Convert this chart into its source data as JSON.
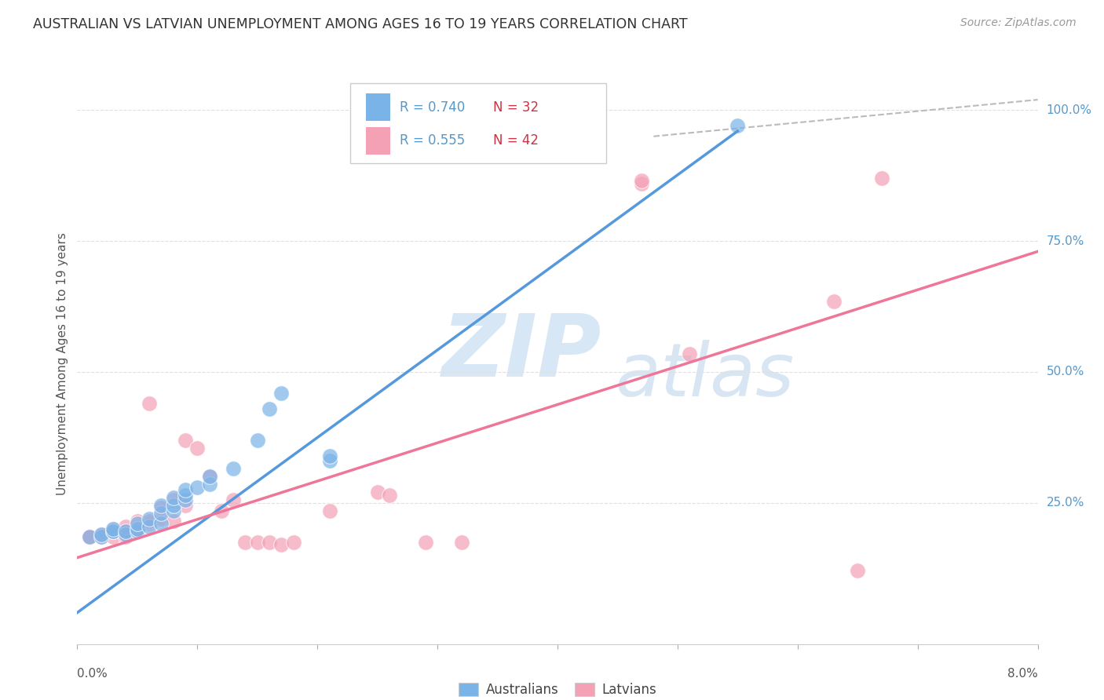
{
  "title": "AUSTRALIAN VS LATVIAN UNEMPLOYMENT AMONG AGES 16 TO 19 YEARS CORRELATION CHART",
  "source": "Source: ZipAtlas.com",
  "ylabel": "Unemployment Among Ages 16 to 19 years",
  "xlim": [
    0.0,
    0.08
  ],
  "ylim": [
    -0.02,
    1.05
  ],
  "legend_blue_r": "R = 0.740",
  "legend_blue_n": "N = 32",
  "legend_pink_r": "R = 0.555",
  "legend_pink_n": "N = 42",
  "legend_label_blue": "Australians",
  "legend_label_pink": "Latvians",
  "watermark_zip": "ZIP",
  "watermark_atlas": "atlas",
  "blue_color": "#7ab3e8",
  "pink_color": "#f4a0b5",
  "blue_line_color": "#5599dd",
  "pink_line_color": "#ee7799",
  "title_color": "#333333",
  "source_color": "#999999",
  "legend_r_color": "#5599cc",
  "legend_n_color": "#cc3344",
  "yaxis_color": "#5599cc",
  "grid_color": "#e0e0e0",
  "blue_scatter": [
    [
      0.001,
      0.185
    ],
    [
      0.002,
      0.185
    ],
    [
      0.002,
      0.19
    ],
    [
      0.003,
      0.195
    ],
    [
      0.003,
      0.195
    ],
    [
      0.003,
      0.2
    ],
    [
      0.004,
      0.19
    ],
    [
      0.004,
      0.195
    ],
    [
      0.005,
      0.195
    ],
    [
      0.005,
      0.2
    ],
    [
      0.005,
      0.21
    ],
    [
      0.006,
      0.205
    ],
    [
      0.006,
      0.22
    ],
    [
      0.007,
      0.21
    ],
    [
      0.007,
      0.23
    ],
    [
      0.007,
      0.245
    ],
    [
      0.008,
      0.235
    ],
    [
      0.008,
      0.245
    ],
    [
      0.008,
      0.26
    ],
    [
      0.009,
      0.255
    ],
    [
      0.009,
      0.265
    ],
    [
      0.009,
      0.275
    ],
    [
      0.01,
      0.28
    ],
    [
      0.011,
      0.285
    ],
    [
      0.011,
      0.3
    ],
    [
      0.013,
      0.315
    ],
    [
      0.015,
      0.37
    ],
    [
      0.016,
      0.43
    ],
    [
      0.017,
      0.46
    ],
    [
      0.021,
      0.33
    ],
    [
      0.021,
      0.34
    ],
    [
      0.055,
      0.97
    ]
  ],
  "pink_scatter": [
    [
      0.001,
      0.185
    ],
    [
      0.001,
      0.185
    ],
    [
      0.002,
      0.185
    ],
    [
      0.002,
      0.19
    ],
    [
      0.003,
      0.185
    ],
    [
      0.003,
      0.195
    ],
    [
      0.003,
      0.2
    ],
    [
      0.004,
      0.185
    ],
    [
      0.004,
      0.195
    ],
    [
      0.004,
      0.205
    ],
    [
      0.005,
      0.195
    ],
    [
      0.005,
      0.2
    ],
    [
      0.005,
      0.215
    ],
    [
      0.006,
      0.21
    ],
    [
      0.006,
      0.215
    ],
    [
      0.006,
      0.44
    ],
    [
      0.007,
      0.22
    ],
    [
      0.007,
      0.24
    ],
    [
      0.008,
      0.215
    ],
    [
      0.008,
      0.255
    ],
    [
      0.009,
      0.245
    ],
    [
      0.009,
      0.37
    ],
    [
      0.01,
      0.355
    ],
    [
      0.011,
      0.3
    ],
    [
      0.012,
      0.235
    ],
    [
      0.013,
      0.255
    ],
    [
      0.014,
      0.175
    ],
    [
      0.015,
      0.175
    ],
    [
      0.016,
      0.175
    ],
    [
      0.017,
      0.17
    ],
    [
      0.018,
      0.175
    ],
    [
      0.021,
      0.235
    ],
    [
      0.025,
      0.27
    ],
    [
      0.026,
      0.265
    ],
    [
      0.029,
      0.175
    ],
    [
      0.032,
      0.175
    ],
    [
      0.047,
      0.86
    ],
    [
      0.047,
      0.865
    ],
    [
      0.051,
      0.535
    ],
    [
      0.063,
      0.635
    ],
    [
      0.065,
      0.12
    ],
    [
      0.067,
      0.87
    ]
  ],
  "blue_line_x": [
    0.0,
    0.055
  ],
  "blue_line_y": [
    0.04,
    0.96
  ],
  "pink_line_x": [
    0.0,
    0.08
  ],
  "pink_line_y": [
    0.145,
    0.73
  ],
  "diag_line_x": [
    0.048,
    0.08
  ],
  "diag_line_y": [
    0.95,
    1.02
  ]
}
